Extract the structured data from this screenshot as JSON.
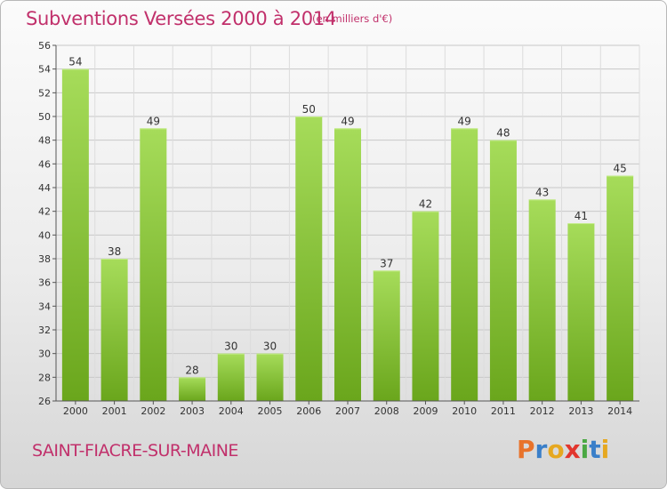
{
  "title": "Subventions Versées 2000 à 2014",
  "subtitle": "(en milliers d'€)",
  "commune": "SAINT-FIACRE-SUR-MAINE",
  "logo": {
    "text": "Proxiti",
    "letters": [
      {
        "char": "P",
        "color": "#e8732b"
      },
      {
        "char": "r",
        "color": "#3a7fc9"
      },
      {
        "char": "o",
        "color": "#e6a820"
      },
      {
        "char": "x",
        "color": "#e2362e"
      },
      {
        "char": "i",
        "color": "#4aa843"
      },
      {
        "char": "t",
        "color": "#3a7fc9"
      },
      {
        "char": "i",
        "color": "#e6a820"
      }
    ]
  },
  "colors": {
    "bar_light": "#a6dc5a",
    "bar_dark": "#6aa61c",
    "title": "#c1306b",
    "grid": "#c8c8c8",
    "axis": "#555555"
  },
  "chart_data": {
    "type": "bar",
    "categories": [
      "2000",
      "2001",
      "2002",
      "2003",
      "2004",
      "2005",
      "2006",
      "2007",
      "2008",
      "2009",
      "2010",
      "2011",
      "2012",
      "2013",
      "2014"
    ],
    "values": [
      54,
      38,
      49,
      28,
      30,
      30,
      50,
      49,
      37,
      42,
      49,
      48,
      43,
      41,
      45
    ],
    "title": "Subventions Versées 2000 à 2014",
    "ylabel": "",
    "xlabel": "",
    "ylim": [
      26,
      56
    ],
    "ytick_step": 2,
    "grid": true
  }
}
